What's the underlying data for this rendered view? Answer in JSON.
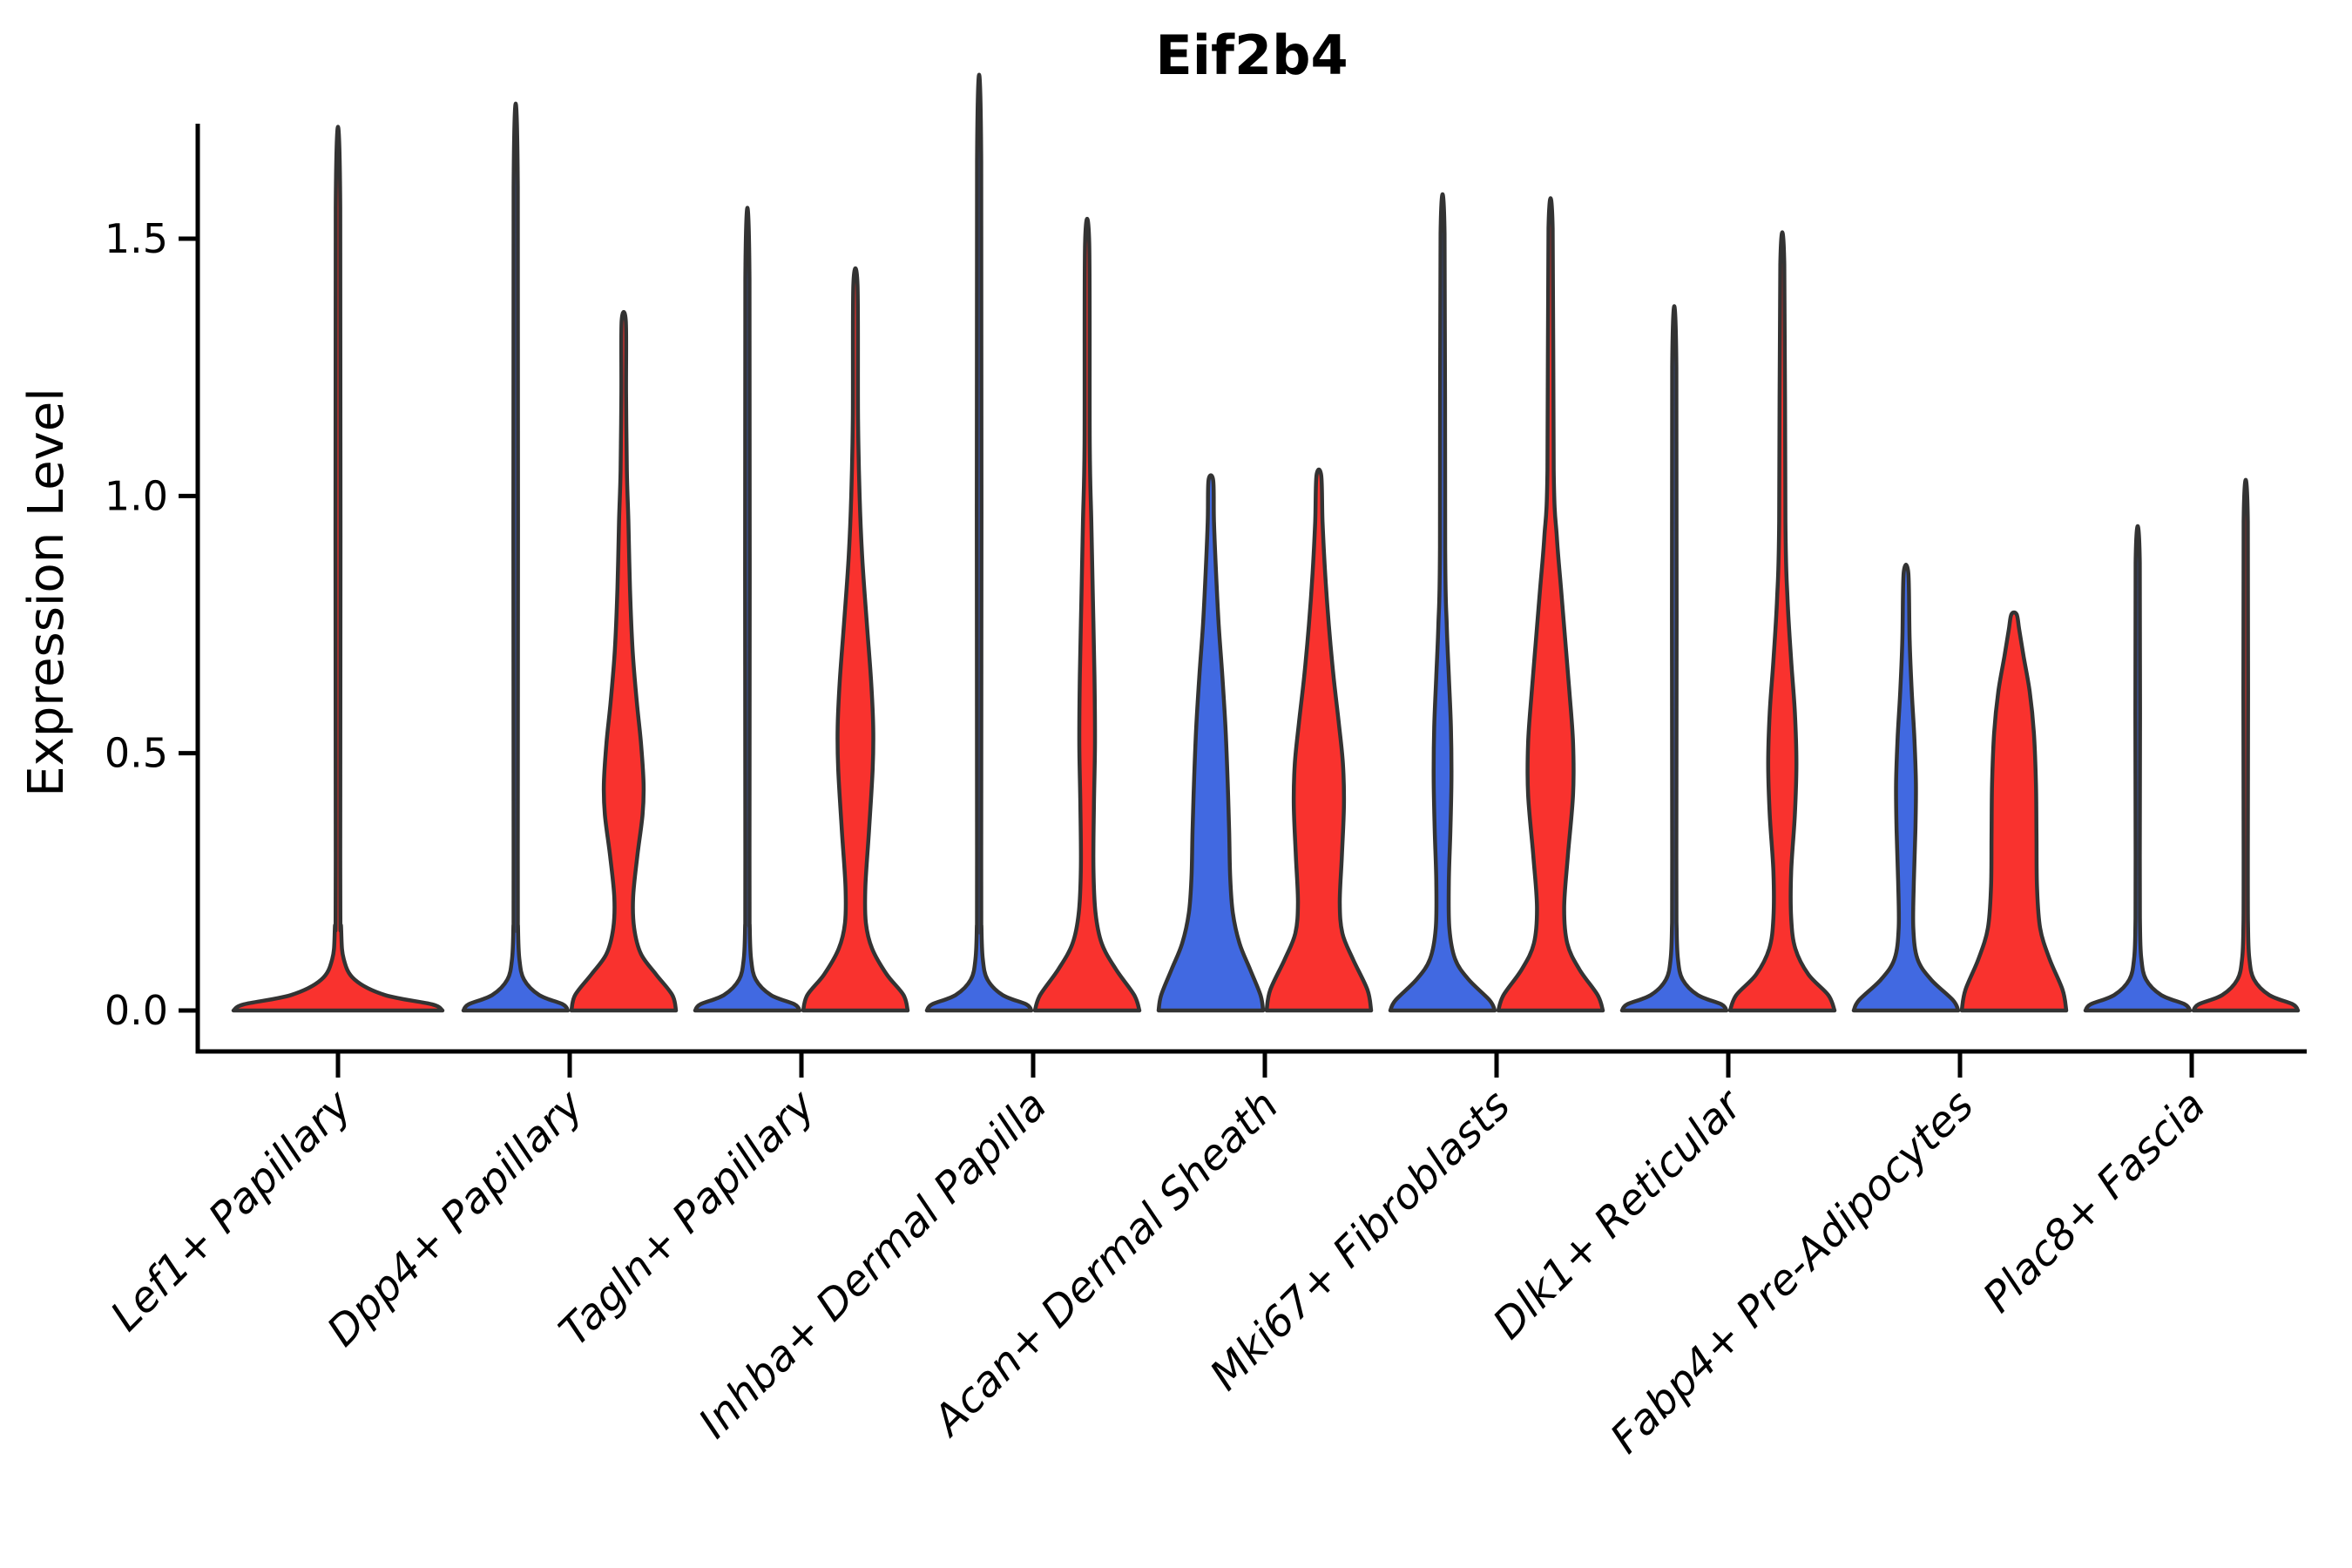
{
  "chart_data": {
    "type": "violin",
    "title": "Eif2b4",
    "ylabel": "Expression Level",
    "xlabel": "",
    "ylim": [
      0,
      1.72
    ],
    "grid": false,
    "legend": "none",
    "yticks": [
      "0.0",
      "0.5",
      "1.0",
      "1.5"
    ],
    "ytick_values": [
      0,
      0.5,
      1.0,
      1.5
    ],
    "palette": {
      "blue": "#4169E1",
      "red": "#F9322E",
      "outline": "#333333"
    },
    "categories": [
      "Lef1+ Papillary",
      "Dpp4+ Papillary",
      "Tagln+ Papillary",
      "Inhba+ Dermal Papilla",
      "Acan+ Dermal Sheath",
      "Mki67+ Fibroblasts",
      "Dlk1+ Reticular",
      "Fabp4+ Pre-Adipocytes",
      "Plac8+ Fascia"
    ],
    "groups": [
      {
        "category": "Lef1+ Papillary",
        "violins": [
          {
            "color": "red",
            "position": "center",
            "width_scale": 2,
            "max": 1.56,
            "profile": [
              [
                0,
                1
              ],
              [
                0.012,
                0.9
              ],
              [
                0.03,
                0.45
              ],
              [
                0.06,
                0.16
              ],
              [
                0.1,
                0.055
              ],
              [
                0.16,
                0.03
              ],
              [
                0.3,
                0.022
              ],
              [
                1.56,
                0.022
              ]
            ]
          }
        ]
      },
      {
        "category": "Dpp4+ Papillary",
        "violins": [
          {
            "color": "blue",
            "position": "left",
            "width_scale": 1,
            "max": 1.6,
            "profile": [
              [
                0,
                1
              ],
              [
                0.012,
                0.9
              ],
              [
                0.03,
                0.45
              ],
              [
                0.06,
                0.16
              ],
              [
                0.1,
                0.07
              ],
              [
                0.16,
                0.045
              ],
              [
                0.3,
                0.04
              ],
              [
                1.6,
                0.04
              ]
            ]
          },
          {
            "color": "red",
            "position": "right",
            "width_scale": 1,
            "max": 1.34,
            "profile": [
              [
                0,
                1
              ],
              [
                0.03,
                0.93
              ],
              [
                0.07,
                0.62
              ],
              [
                0.11,
                0.33
              ],
              [
                0.16,
                0.2
              ],
              [
                0.22,
                0.18
              ],
              [
                0.3,
                0.26
              ],
              [
                0.38,
                0.36
              ],
              [
                0.44,
                0.38
              ],
              [
                0.52,
                0.33
              ],
              [
                0.6,
                0.25
              ],
              [
                0.7,
                0.17
              ],
              [
                0.82,
                0.12
              ],
              [
                0.95,
                0.09
              ],
              [
                1.05,
                0.06
              ],
              [
                1.2,
                0.045
              ],
              [
                1.34,
                0.04
              ]
            ]
          }
        ]
      },
      {
        "category": "Tagln+ Papillary",
        "violins": [
          {
            "color": "blue",
            "position": "left",
            "width_scale": 1,
            "max": 1.42,
            "profile": [
              [
                0,
                1
              ],
              [
                0.012,
                0.9
              ],
              [
                0.03,
                0.45
              ],
              [
                0.06,
                0.16
              ],
              [
                0.1,
                0.07
              ],
              [
                0.16,
                0.045
              ],
              [
                0.3,
                0.04
              ],
              [
                1.42,
                0.04
              ]
            ]
          },
          {
            "color": "red",
            "position": "right",
            "width_scale": 1,
            "max": 1.41,
            "profile": [
              [
                0,
                1
              ],
              [
                0.03,
                0.92
              ],
              [
                0.07,
                0.6
              ],
              [
                0.12,
                0.32
              ],
              [
                0.17,
                0.2
              ],
              [
                0.24,
                0.19
              ],
              [
                0.35,
                0.26
              ],
              [
                0.47,
                0.33
              ],
              [
                0.55,
                0.34
              ],
              [
                0.64,
                0.3
              ],
              [
                0.75,
                0.22
              ],
              [
                0.88,
                0.13
              ],
              [
                1.0,
                0.08
              ],
              [
                1.15,
                0.05
              ],
              [
                1.41,
                0.04
              ]
            ]
          }
        ]
      },
      {
        "category": "Inhba+ Dermal Papilla",
        "violins": [
          {
            "color": "blue",
            "position": "left",
            "width_scale": 1,
            "max": 1.65,
            "profile": [
              [
                0,
                1
              ],
              [
                0.012,
                0.9
              ],
              [
                0.03,
                0.45
              ],
              [
                0.06,
                0.16
              ],
              [
                0.1,
                0.07
              ],
              [
                0.16,
                0.045
              ],
              [
                0.3,
                0.04
              ],
              [
                1.65,
                0.04
              ]
            ]
          },
          {
            "color": "red",
            "position": "right",
            "width_scale": 1,
            "max": 1.49,
            "profile": [
              [
                0,
                1
              ],
              [
                0.03,
                0.9
              ],
              [
                0.08,
                0.55
              ],
              [
                0.13,
                0.28
              ],
              [
                0.19,
                0.16
              ],
              [
                0.28,
                0.12
              ],
              [
                0.4,
                0.13
              ],
              [
                0.52,
                0.15
              ],
              [
                0.65,
                0.14
              ],
              [
                0.8,
                0.11
              ],
              [
                0.95,
                0.08
              ],
              [
                1.1,
                0.05
              ],
              [
                1.49,
                0.04
              ]
            ]
          }
        ]
      },
      {
        "category": "Acan+ Dermal Sheath",
        "violins": [
          {
            "color": "blue",
            "position": "left",
            "width_scale": 1,
            "max": 1.03,
            "profile": [
              [
                0,
                1
              ],
              [
                0.03,
                0.95
              ],
              [
                0.08,
                0.75
              ],
              [
                0.13,
                0.55
              ],
              [
                0.19,
                0.42
              ],
              [
                0.26,
                0.37
              ],
              [
                0.35,
                0.35
              ],
              [
                0.45,
                0.32
              ],
              [
                0.55,
                0.28
              ],
              [
                0.65,
                0.22
              ],
              [
                0.75,
                0.15
              ],
              [
                0.85,
                0.1
              ],
              [
                0.95,
                0.06
              ],
              [
                1.03,
                0.045
              ]
            ]
          },
          {
            "color": "red",
            "position": "right",
            "width_scale": 1,
            "max": 1.04,
            "profile": [
              [
                0,
                1
              ],
              [
                0.04,
                0.93
              ],
              [
                0.1,
                0.65
              ],
              [
                0.15,
                0.45
              ],
              [
                0.21,
                0.4
              ],
              [
                0.3,
                0.44
              ],
              [
                0.4,
                0.48
              ],
              [
                0.48,
                0.46
              ],
              [
                0.56,
                0.38
              ],
              [
                0.65,
                0.28
              ],
              [
                0.75,
                0.19
              ],
              [
                0.85,
                0.12
              ],
              [
                0.95,
                0.07
              ],
              [
                1.04,
                0.045
              ]
            ]
          }
        ]
      },
      {
        "category": "Mki67+ Fibroblasts",
        "violins": [
          {
            "color": "blue",
            "position": "left",
            "width_scale": 1,
            "max": 1.51,
            "profile": [
              [
                0,
                1
              ],
              [
                0.02,
                0.9
              ],
              [
                0.06,
                0.5
              ],
              [
                0.1,
                0.24
              ],
              [
                0.16,
                0.13
              ],
              [
                0.25,
                0.12
              ],
              [
                0.35,
                0.15
              ],
              [
                0.45,
                0.17
              ],
              [
                0.55,
                0.16
              ],
              [
                0.65,
                0.12
              ],
              [
                0.75,
                0.08
              ],
              [
                0.9,
                0.05
              ],
              [
                1.51,
                0.038
              ]
            ]
          },
          {
            "color": "red",
            "position": "right",
            "width_scale": 1,
            "max": 1.52,
            "profile": [
              [
                0,
                1
              ],
              [
                0.03,
                0.9
              ],
              [
                0.08,
                0.55
              ],
              [
                0.13,
                0.32
              ],
              [
                0.2,
                0.26
              ],
              [
                0.3,
                0.33
              ],
              [
                0.42,
                0.43
              ],
              [
                0.52,
                0.43
              ],
              [
                0.62,
                0.36
              ],
              [
                0.72,
                0.28
              ],
              [
                0.82,
                0.2
              ],
              [
                0.92,
                0.12
              ],
              [
                1.05,
                0.06
              ],
              [
                1.52,
                0.04
              ]
            ]
          }
        ]
      },
      {
        "category": "Dlk1+ Reticular",
        "violins": [
          {
            "color": "blue",
            "position": "left",
            "width_scale": 1,
            "max": 1.25,
            "profile": [
              [
                0,
                1
              ],
              [
                0.012,
                0.9
              ],
              [
                0.03,
                0.45
              ],
              [
                0.06,
                0.16
              ],
              [
                0.1,
                0.07
              ],
              [
                0.16,
                0.045
              ],
              [
                0.3,
                0.04
              ],
              [
                1.25,
                0.04
              ]
            ]
          },
          {
            "color": "red",
            "position": "right",
            "width_scale": 1,
            "max": 1.45,
            "profile": [
              [
                0,
                1
              ],
              [
                0.03,
                0.88
              ],
              [
                0.07,
                0.5
              ],
              [
                0.12,
                0.25
              ],
              [
                0.18,
                0.17
              ],
              [
                0.27,
                0.17
              ],
              [
                0.38,
                0.24
              ],
              [
                0.48,
                0.27
              ],
              [
                0.58,
                0.24
              ],
              [
                0.68,
                0.17
              ],
              [
                0.8,
                0.1
              ],
              [
                0.95,
                0.06
              ],
              [
                1.45,
                0.038
              ]
            ]
          }
        ]
      },
      {
        "category": "Fabp4+ Pre-Adipocytes",
        "violins": [
          {
            "color": "blue",
            "position": "left",
            "width_scale": 1,
            "max": 0.85,
            "profile": [
              [
                0,
                1
              ],
              [
                0.02,
                0.9
              ],
              [
                0.06,
                0.48
              ],
              [
                0.1,
                0.22
              ],
              [
                0.16,
                0.14
              ],
              [
                0.25,
                0.15
              ],
              [
                0.35,
                0.18
              ],
              [
                0.44,
                0.19
              ],
              [
                0.53,
                0.16
              ],
              [
                0.62,
                0.11
              ],
              [
                0.72,
                0.07
              ],
              [
                0.85,
                0.045
              ]
            ]
          },
          {
            "color": "red",
            "position": "right",
            "width_scale": 1,
            "max": 0.77,
            "profile": [
              [
                0,
                1
              ],
              [
                0.04,
                0.93
              ],
              [
                0.1,
                0.68
              ],
              [
                0.16,
                0.5
              ],
              [
                0.24,
                0.44
              ],
              [
                0.34,
                0.43
              ],
              [
                0.44,
                0.42
              ],
              [
                0.54,
                0.38
              ],
              [
                0.62,
                0.3
              ],
              [
                0.69,
                0.18
              ],
              [
                0.74,
                0.1
              ],
              [
                0.77,
                0.05
              ]
            ]
          }
        ]
      },
      {
        "category": "Plac8+ Fascia",
        "violins": [
          {
            "color": "blue",
            "position": "left",
            "width_scale": 1,
            "max": 0.87,
            "profile": [
              [
                0,
                1
              ],
              [
                0.012,
                0.9
              ],
              [
                0.03,
                0.45
              ],
              [
                0.06,
                0.16
              ],
              [
                0.1,
                0.07
              ],
              [
                0.16,
                0.045
              ],
              [
                0.3,
                0.04
              ],
              [
                0.87,
                0.04
              ]
            ]
          },
          {
            "color": "red",
            "position": "right",
            "width_scale": 1,
            "max": 0.95,
            "profile": [
              [
                0,
                1
              ],
              [
                0.012,
                0.9
              ],
              [
                0.03,
                0.45
              ],
              [
                0.06,
                0.16
              ],
              [
                0.1,
                0.07
              ],
              [
                0.16,
                0.045
              ],
              [
                0.3,
                0.04
              ],
              [
                0.95,
                0.04
              ]
            ]
          }
        ]
      }
    ]
  }
}
